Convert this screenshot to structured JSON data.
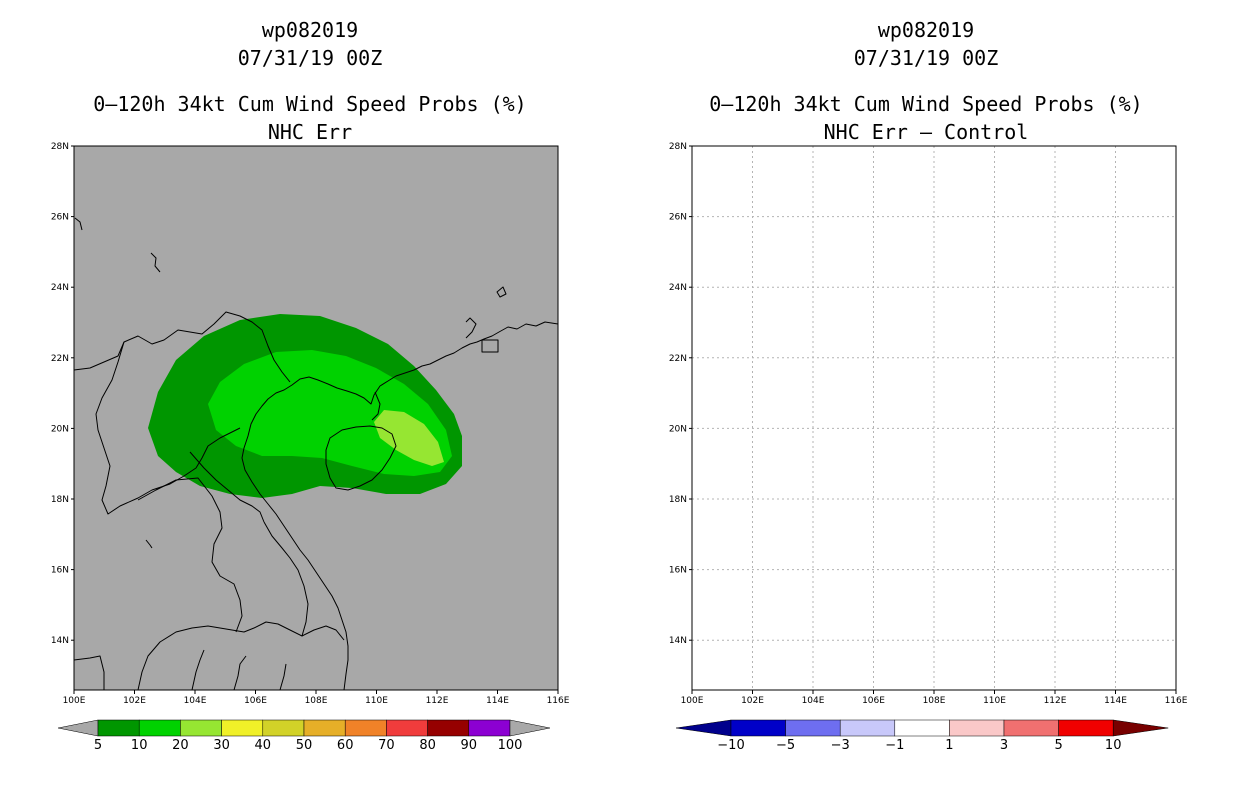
{
  "left_panel": {
    "storm_id": "wp082019",
    "datetime": "07/31/19 00Z",
    "product": "0–120h 34kt Cum Wind Speed Probs (%)",
    "subtitle": "NHC Err",
    "colors": {
      "background": "#a8a8a8",
      "c5": "#009600",
      "c10": "#00d200",
      "c20": "#96e632"
    },
    "colorbar": {
      "labels": [
        "5",
        "10",
        "20",
        "30",
        "40",
        "50",
        "60",
        "70",
        "80",
        "90",
        "100"
      ],
      "colors": [
        "#009600",
        "#00d200",
        "#96e632",
        "#f0f028",
        "#d2d228",
        "#e6af28",
        "#f08228",
        "#f03c3c",
        "#960000",
        "#8c00d2"
      ],
      "end_color": "#a8a8a8"
    }
  },
  "right_panel": {
    "storm_id": "wp082019",
    "datetime": "07/31/19 00Z",
    "product": "0–120h 34kt Cum Wind Speed Probs (%)",
    "subtitle": "NHC Err – Control",
    "colorbar": {
      "labels": [
        "−10",
        "−5",
        "−3",
        "−1",
        "1",
        "3",
        "5",
        "10"
      ],
      "colors": [
        "#0000c8",
        "#6e6ef0",
        "#c8c8fa",
        "#ffffff",
        "#fac8c8",
        "#f07070",
        "#f00000"
      ],
      "end_left": "#00008c",
      "end_right": "#780000"
    }
  },
  "axes": {
    "lat_labels": [
      "28N",
      "26N",
      "24N",
      "22N",
      "20N",
      "18N",
      "16N",
      "14N"
    ],
    "lon_labels": [
      "100E",
      "102E",
      "104E",
      "106E",
      "108E",
      "110E",
      "112E",
      "114E",
      "116E"
    ]
  }
}
